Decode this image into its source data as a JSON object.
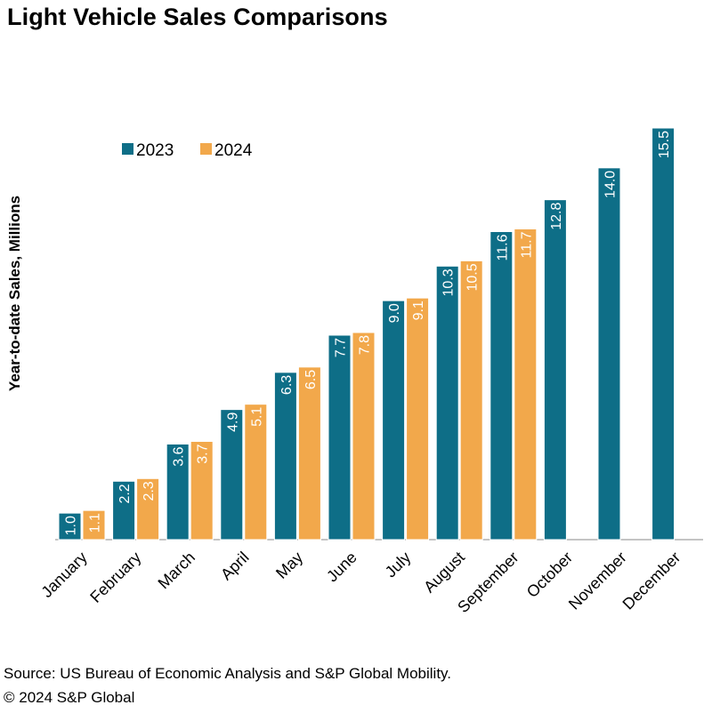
{
  "title": "Light Vehicle Sales Comparisons",
  "footer": {
    "source": "Source: US Bureau of Economic Analysis and S&P Global Mobility.",
    "copyright": "© 2024 S&P Global"
  },
  "colors": {
    "series_2023": "#0e6e87",
    "series_2024": "#f2a84b"
  },
  "chart_data": {
    "type": "bar",
    "title": "Light Vehicle Sales Comparisons",
    "ylabel": "Year-to-date Sales, Millions",
    "xlabel": "",
    "ylim": [
      0,
      15.5
    ],
    "legend_position": "top-left",
    "grid": false,
    "categories": [
      "January",
      "February",
      "March",
      "April",
      "May",
      "June",
      "July",
      "August",
      "September",
      "October",
      "November",
      "December"
    ],
    "series": [
      {
        "name": "2023",
        "values": [
          1.0,
          2.2,
          3.6,
          4.9,
          6.3,
          7.7,
          9.0,
          10.3,
          11.6,
          12.8,
          14.0,
          15.5
        ]
      },
      {
        "name": "2024",
        "values": [
          1.1,
          2.3,
          3.7,
          5.1,
          6.5,
          7.8,
          9.1,
          10.5,
          11.7,
          null,
          null,
          null
        ]
      }
    ]
  }
}
